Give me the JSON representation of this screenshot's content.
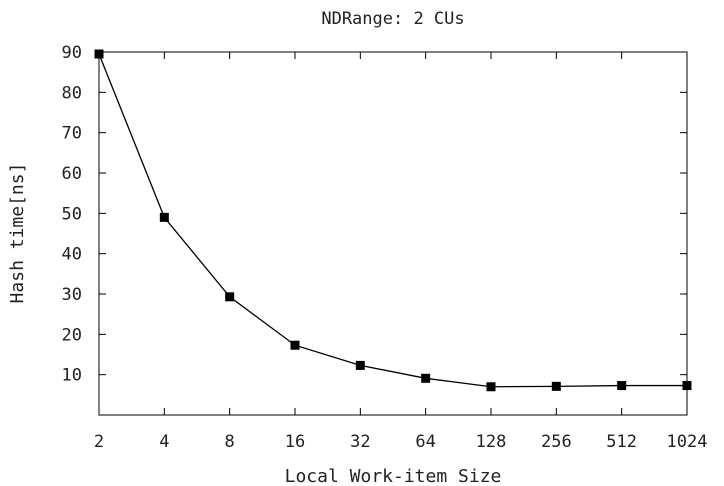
{
  "chart_data": {
    "type": "line",
    "title": "NDRange: 2 CUs",
    "xlabel": "Local Work-item Size",
    "ylabel": "Hash time[ns]",
    "categories": [
      "2",
      "4",
      "8",
      "16",
      "32",
      "64",
      "128",
      "256",
      "512",
      "1024"
    ],
    "yticks": [
      "10",
      "20",
      "30",
      "40",
      "50",
      "60",
      "70",
      "80",
      "90"
    ],
    "ylim": [
      0,
      90
    ],
    "x_scale": "log2",
    "grid": false,
    "legend": "none",
    "series": [
      {
        "values": [
          89.5,
          49,
          29.3,
          17.3,
          12.3,
          9.1,
          7.0,
          7.1,
          7.3,
          7.3
        ],
        "marker": "square",
        "color": "#000000"
      }
    ]
  }
}
